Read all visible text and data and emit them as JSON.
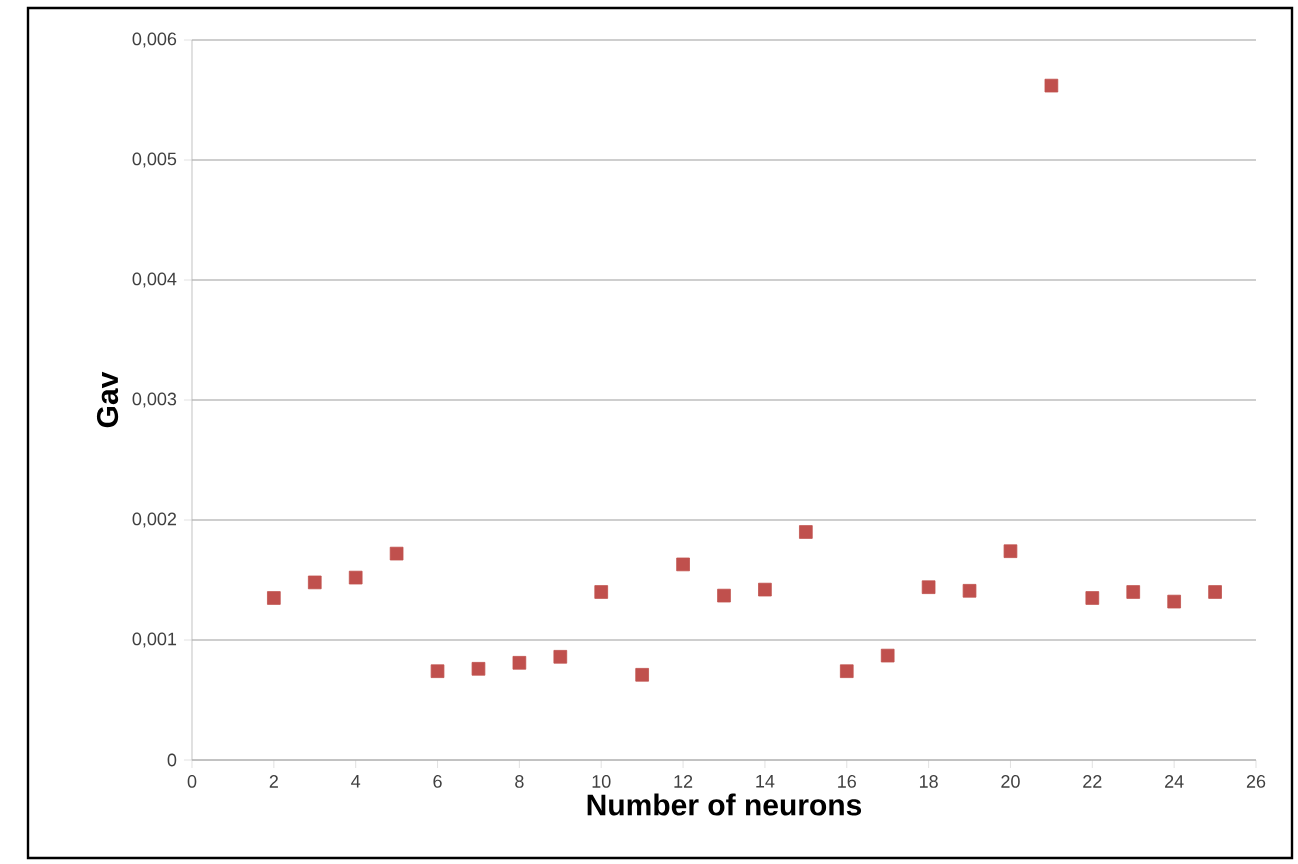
{
  "chart_data": {
    "type": "scatter",
    "xlabel": "Number of neurons",
    "ylabel": "Gav",
    "x": [
      2,
      3,
      4,
      5,
      6,
      7,
      8,
      9,
      10,
      11,
      12,
      13,
      14,
      15,
      16,
      17,
      18,
      19,
      20,
      21,
      22,
      23,
      24,
      25
    ],
    "values": [
      0.00135,
      0.00148,
      0.00152,
      0.00172,
      0.00074,
      0.00076,
      0.00081,
      0.00086,
      0.0014,
      0.00071,
      0.00163,
      0.00137,
      0.00142,
      0.0019,
      0.00074,
      0.00087,
      0.00144,
      0.00141,
      0.00174,
      0.00562,
      0.00135,
      0.0014,
      0.00132,
      0.0014
    ],
    "color": "#c0504d",
    "marker": "square",
    "grid": "y",
    "xlim": [
      0,
      26
    ],
    "xticks": [
      0,
      2,
      4,
      6,
      8,
      10,
      12,
      14,
      16,
      18,
      20,
      22,
      24,
      26
    ],
    "ylim": [
      0,
      0.006
    ],
    "yticks": [
      0,
      {
        "value": 0.001,
        "label": "0,001"
      },
      {
        "value": 0.002,
        "label": "0,002"
      },
      {
        "value": 0.003,
        "label": "0,003"
      },
      {
        "value": 0.004,
        "label": "0,004"
      },
      {
        "value": 0.005,
        "label": "0,005"
      },
      {
        "value": 0.006,
        "label": "0,006"
      }
    ]
  }
}
